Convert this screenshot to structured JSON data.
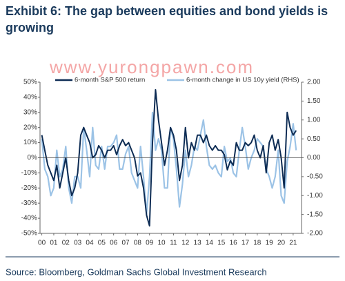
{
  "chart_data": {
    "type": "line",
    "title": "Exhibit 6: The gap between equities and bond yields is growing",
    "watermark": "www.yurongpawn.com",
    "source": "Source: Bloomberg, Goldman Sachs Global Investment Research",
    "x": [
      0,
      0.25,
      0.5,
      0.75,
      1,
      1.25,
      1.5,
      1.75,
      2,
      2.25,
      2.5,
      2.75,
      3,
      3.25,
      3.5,
      3.75,
      4,
      4.25,
      4.5,
      4.75,
      5,
      5.25,
      5.5,
      5.75,
      6,
      6.25,
      6.5,
      6.75,
      7,
      7.25,
      7.5,
      7.75,
      8,
      8.25,
      8.5,
      8.75,
      9,
      9.25,
      9.5,
      9.75,
      10,
      10.25,
      10.5,
      10.75,
      11,
      11.25,
      11.5,
      11.75,
      12,
      12.25,
      12.5,
      12.75,
      13,
      13.25,
      13.5,
      13.75,
      14,
      14.25,
      14.5,
      14.75,
      15,
      15.25,
      15.5,
      15.75,
      16,
      16.25,
      16.5,
      16.75,
      17,
      17.25,
      17.5,
      17.75,
      18,
      18.25,
      18.5,
      18.75,
      19,
      19.25,
      19.5,
      19.75,
      20,
      20.25,
      20.5,
      20.75,
      21,
      21.25
    ],
    "xlim": [
      -0.15,
      21.7
    ],
    "xticks": [
      {
        "value": 0,
        "label": "00"
      },
      {
        "value": 1,
        "label": "01"
      },
      {
        "value": 2,
        "label": "02"
      },
      {
        "value": 3,
        "label": "03"
      },
      {
        "value": 4,
        "label": "04"
      },
      {
        "value": 5,
        "label": "05"
      },
      {
        "value": 6,
        "label": "06"
      },
      {
        "value": 7,
        "label": "07"
      },
      {
        "value": 8,
        "label": "08"
      },
      {
        "value": 9,
        "label": "09"
      },
      10,
      11,
      12,
      13,
      14,
      15,
      16,
      17,
      18,
      19,
      20,
      21
    ],
    "ylim": [
      -50,
      50
    ],
    "yticks": [
      {
        "value": -50,
        "label": "-50%"
      },
      {
        "value": -40,
        "label": "-40%"
      },
      {
        "value": -30,
        "label": "-30%"
      },
      {
        "value": -20,
        "label": "-20%"
      },
      {
        "value": -10,
        "label": "-10%"
      },
      {
        "value": 0,
        "label": "0%"
      },
      {
        "value": 10,
        "label": "10%"
      },
      {
        "value": 20,
        "label": "20%"
      },
      {
        "value": 30,
        "label": "30%"
      },
      {
        "value": 40,
        "label": "40%"
      },
      {
        "value": 50,
        "label": "50%"
      }
    ],
    "y2lim": [
      -2,
      2
    ],
    "y2ticks": [
      {
        "value": -2,
        "label": "-2.00"
      },
      {
        "value": -1.5,
        "label": "-1.50"
      },
      {
        "value": -1,
        "label": "-1.00"
      },
      {
        "value": -0.5,
        "label": "-0.50"
      },
      {
        "value": 0,
        "label": "0.00"
      },
      {
        "value": 0.5,
        "label": "0.50"
      },
      {
        "value": 1,
        "label": "1.00"
      },
      {
        "value": 1.5,
        "label": "1.50"
      },
      {
        "value": 2,
        "label": "2.00"
      }
    ],
    "series": [
      {
        "name": "6-month S&P 500 return",
        "color": "#0d2c54",
        "values": [
          15,
          5,
          -5,
          -10,
          -15,
          -5,
          -20,
          -10,
          0,
          -15,
          -25,
          -20,
          -10,
          15,
          20,
          15,
          10,
          0,
          2,
          8,
          5,
          0,
          5,
          5,
          8,
          2,
          8,
          12,
          8,
          10,
          5,
          0,
          -12,
          -10,
          -20,
          -38,
          -45,
          10,
          45,
          25,
          10,
          -5,
          5,
          20,
          15,
          5,
          -15,
          -5,
          20,
          0,
          10,
          5,
          15,
          15,
          10,
          15,
          8,
          5,
          8,
          5,
          5,
          2,
          -8,
          -2,
          -5,
          10,
          5,
          5,
          10,
          8,
          10,
          15,
          5,
          0,
          8,
          -10,
          10,
          15,
          5,
          12,
          0,
          -20,
          30,
          20,
          15,
          18
        ]
      },
      {
        "name": "6-month change in US 10y yield (RHS)",
        "color": "#9cc3e6",
        "axis": "y2",
        "values": [
          0.5,
          -0.3,
          -0.5,
          -1.0,
          -0.8,
          0.2,
          -0.5,
          -0.3,
          0.3,
          -0.8,
          -1.2,
          -0.5,
          -0.5,
          -0.8,
          0.8,
          0.2,
          -0.5,
          0.8,
          -0.2,
          -0.3,
          0.3,
          -0.3,
          0.3,
          0.3,
          0.4,
          0.6,
          -0.3,
          -0.3,
          0.1,
          0.3,
          -0.4,
          -0.6,
          -0.8,
          0.3,
          -0.5,
          -1.5,
          -0.5,
          1.2,
          0.2,
          0.5,
          0.2,
          -0.8,
          -0.8,
          0.8,
          0.5,
          -0.3,
          -1.3,
          -0.7,
          0.2,
          -0.5,
          -0.2,
          0.3,
          0.2,
          0.6,
          1.0,
          0.3,
          -0.2,
          -0.3,
          -0.2,
          -0.4,
          -0.5,
          0.3,
          -0.1,
          0.0,
          -0.4,
          -0.5,
          0.2,
          0.8,
          0.3,
          -0.3,
          0.0,
          0.2,
          0.5,
          0.4,
          0.3,
          -0.3,
          -0.5,
          -0.8,
          -0.5,
          0.2,
          -1.0,
          -1.2,
          -0.1,
          0.3,
          0.9,
          0.2
        ]
      }
    ]
  }
}
